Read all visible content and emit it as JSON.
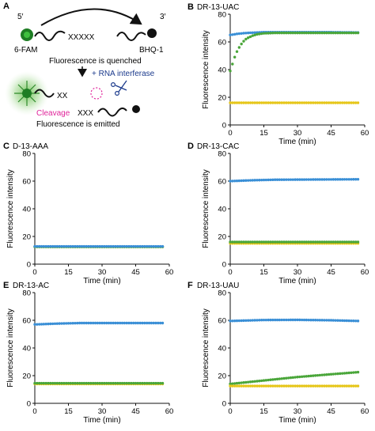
{
  "colors": {
    "blue": "#3a8fd6",
    "green": "#4aa63a",
    "yellow": "#e6c619",
    "pink": "#e0249a",
    "navy": "#1b3a8c",
    "glow": "#57b83a"
  },
  "schematic": {
    "panel_label": "A",
    "five_prime": "5′",
    "three_prime": "3′",
    "fluor": "6-FAM",
    "quencher": "BHQ-1",
    "seq": "XXXXX",
    "quenched": "Fluorescence is quenched",
    "enzyme": "+ RNA interferase",
    "cleavage": "Cleavage",
    "frag1": "XX",
    "frag2": "XXX",
    "emitted": "Fluorescence is emitted",
    "scissors_icon": "scissors-icon"
  },
  "axes_text": {
    "ylabel": "Fluorescence intensity",
    "xlabel": "Time (min)"
  },
  "chart_data": [
    {
      "label": "B",
      "title": "DR-13-UAC",
      "type": "scatter",
      "xlim": [
        0,
        60
      ],
      "ylim": [
        0,
        80
      ],
      "xticks": [
        0,
        15,
        30,
        45,
        60
      ],
      "yticks": [
        0,
        20,
        40,
        60,
        80
      ],
      "series": [
        {
          "color": "blue",
          "x": [
            0,
            3,
            6,
            9,
            12,
            15,
            20,
            30,
            45,
            57
          ],
          "y": [
            65,
            65.8,
            66.3,
            66.6,
            66.8,
            67,
            67,
            67,
            67,
            66.8
          ]
        },
        {
          "color": "green",
          "x": [
            0,
            1,
            2,
            3,
            4,
            5,
            6,
            7,
            8,
            10,
            12,
            15,
            20,
            30,
            45,
            57
          ],
          "y": [
            39,
            44,
            49,
            53,
            56,
            58.5,
            60.5,
            62,
            63,
            64.5,
            65.5,
            66.2,
            66.5,
            66.5,
            66.5,
            66.5
          ]
        },
        {
          "color": "yellow",
          "x": [
            0,
            57
          ],
          "y": [
            16,
            16
          ]
        }
      ]
    },
    {
      "label": "C",
      "title": "D-13-AAA",
      "type": "scatter",
      "xlim": [
        0,
        60
      ],
      "ylim": [
        0,
        80
      ],
      "xticks": [
        0,
        15,
        30,
        45,
        60
      ],
      "yticks": [
        0,
        20,
        40,
        60,
        80
      ],
      "series": [
        {
          "color": "yellow",
          "x": [
            0,
            57
          ],
          "y": [
            12.5,
            12.5
          ]
        },
        {
          "color": "green",
          "x": [
            0,
            57
          ],
          "y": [
            12.5,
            12.5
          ]
        },
        {
          "color": "blue",
          "x": [
            0,
            57
          ],
          "y": [
            12.8,
            12.8
          ]
        }
      ]
    },
    {
      "label": "D",
      "title": "DR-13-CAC",
      "type": "scatter",
      "xlim": [
        0,
        60
      ],
      "ylim": [
        0,
        80
      ],
      "xticks": [
        0,
        15,
        30,
        45,
        60
      ],
      "yticks": [
        0,
        20,
        40,
        60,
        80
      ],
      "series": [
        {
          "color": "blue",
          "x": [
            0,
            10,
            20,
            57
          ],
          "y": [
            60,
            60.6,
            61,
            61.3
          ]
        },
        {
          "color": "yellow",
          "x": [
            0,
            57
          ],
          "y": [
            15,
            15
          ]
        },
        {
          "color": "green",
          "x": [
            0,
            57
          ],
          "y": [
            16,
            16
          ]
        }
      ]
    },
    {
      "label": "E",
      "title": "DR-13-AC",
      "type": "scatter",
      "xlim": [
        0,
        60
      ],
      "ylim": [
        0,
        80
      ],
      "xticks": [
        0,
        15,
        30,
        45,
        60
      ],
      "yticks": [
        0,
        20,
        40,
        60,
        80
      ],
      "series": [
        {
          "color": "blue",
          "x": [
            0,
            10,
            20,
            57
          ],
          "y": [
            57,
            57.6,
            58,
            58
          ]
        },
        {
          "color": "yellow",
          "x": [
            0,
            57
          ],
          "y": [
            14,
            14
          ]
        },
        {
          "color": "green",
          "x": [
            0,
            57
          ],
          "y": [
            14.5,
            14.5
          ]
        }
      ]
    },
    {
      "label": "F",
      "title": "DR-13-UAU",
      "type": "scatter",
      "xlim": [
        0,
        60
      ],
      "ylim": [
        0,
        80
      ],
      "xticks": [
        0,
        15,
        30,
        45,
        60
      ],
      "yticks": [
        0,
        20,
        40,
        60,
        80
      ],
      "series": [
        {
          "color": "blue",
          "x": [
            0,
            15,
            30,
            45,
            57
          ],
          "y": [
            59.5,
            60.2,
            60.3,
            60,
            59.5
          ]
        },
        {
          "color": "green",
          "x": [
            0,
            15,
            30,
            45,
            57
          ],
          "y": [
            14,
            16.5,
            19,
            21,
            22.5
          ]
        },
        {
          "color": "yellow",
          "x": [
            0,
            57
          ],
          "y": [
            12.5,
            12.5
          ]
        }
      ]
    }
  ]
}
